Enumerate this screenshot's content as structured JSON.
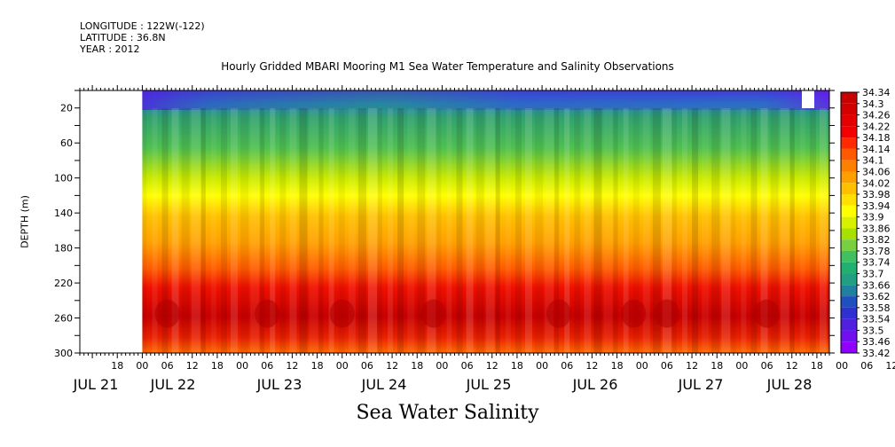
{
  "header": {
    "longitude": "LONGITUDE : 122W(-122)",
    "latitude": "LATITUDE : 36.8N",
    "year": "YEAR : 2012"
  },
  "chart_data": {
    "type": "heatmap",
    "title": "Hourly Gridded MBARI Mooring M1 Sea Water Temperature and Salinity Observations",
    "xlabel": "Sea Water Salinity",
    "ylabel": "DEPTH (m)",
    "x_start_label": "JUL 21 18",
    "hour_ticks": [
      "18",
      "00",
      "06",
      "12",
      "18",
      "00",
      "06",
      "12",
      "18",
      "00",
      "06",
      "12",
      "18",
      "00",
      "06",
      "12",
      "18",
      "00",
      "06",
      "12",
      "18",
      "00",
      "06",
      "12",
      "18",
      "00",
      "06",
      "12",
      "18",
      "00",
      "06",
      "12"
    ],
    "date_labels": [
      "JUL 21",
      "JUL 22",
      "JUL 23",
      "JUL 24",
      "JUL 25",
      "JUL 26",
      "JUL 27",
      "JUL 28"
    ],
    "y_ticks": [
      20,
      60,
      100,
      140,
      180,
      220,
      260,
      300
    ],
    "ylim": [
      0,
      300
    ],
    "xlim_hours": [
      -15,
      165
    ],
    "data_start_hour": 0,
    "colorbar_levels": [
      "34.34",
      "34.3",
      "34.26",
      "34.22",
      "34.18",
      "34.14",
      "34.1",
      "34.06",
      "34.02",
      "33.98",
      "33.94",
      "33.9",
      "33.86",
      "33.82",
      "33.78",
      "33.74",
      "33.7",
      "33.66",
      "33.62",
      "33.58",
      "33.54",
      "33.5",
      "33.46",
      "33.42"
    ],
    "colorbar_colors": [
      "#c80000",
      "#d40000",
      "#e40000",
      "#f20000",
      "#ff2a00",
      "#ff5a00",
      "#ff8000",
      "#ffa000",
      "#ffc000",
      "#ffe000",
      "#ffff00",
      "#d8f000",
      "#a8e000",
      "#78d040",
      "#40c060",
      "#20b070",
      "#20a080",
      "#2080a0",
      "#2050c0",
      "#3030d0",
      "#5020e0",
      "#7010f0",
      "#9000ff"
    ],
    "depth_profile": [
      {
        "depth": 5,
        "value": 33.58
      },
      {
        "depth": 20,
        "value": 33.66
      },
      {
        "depth": 60,
        "value": 33.76
      },
      {
        "depth": 100,
        "value": 33.92
      },
      {
        "depth": 140,
        "value": 34.06
      },
      {
        "depth": 180,
        "value": 34.12
      },
      {
        "depth": 220,
        "value": 34.22
      },
      {
        "depth": 260,
        "value": 34.28
      },
      {
        "depth": 300,
        "value": 34.2
      }
    ]
  }
}
